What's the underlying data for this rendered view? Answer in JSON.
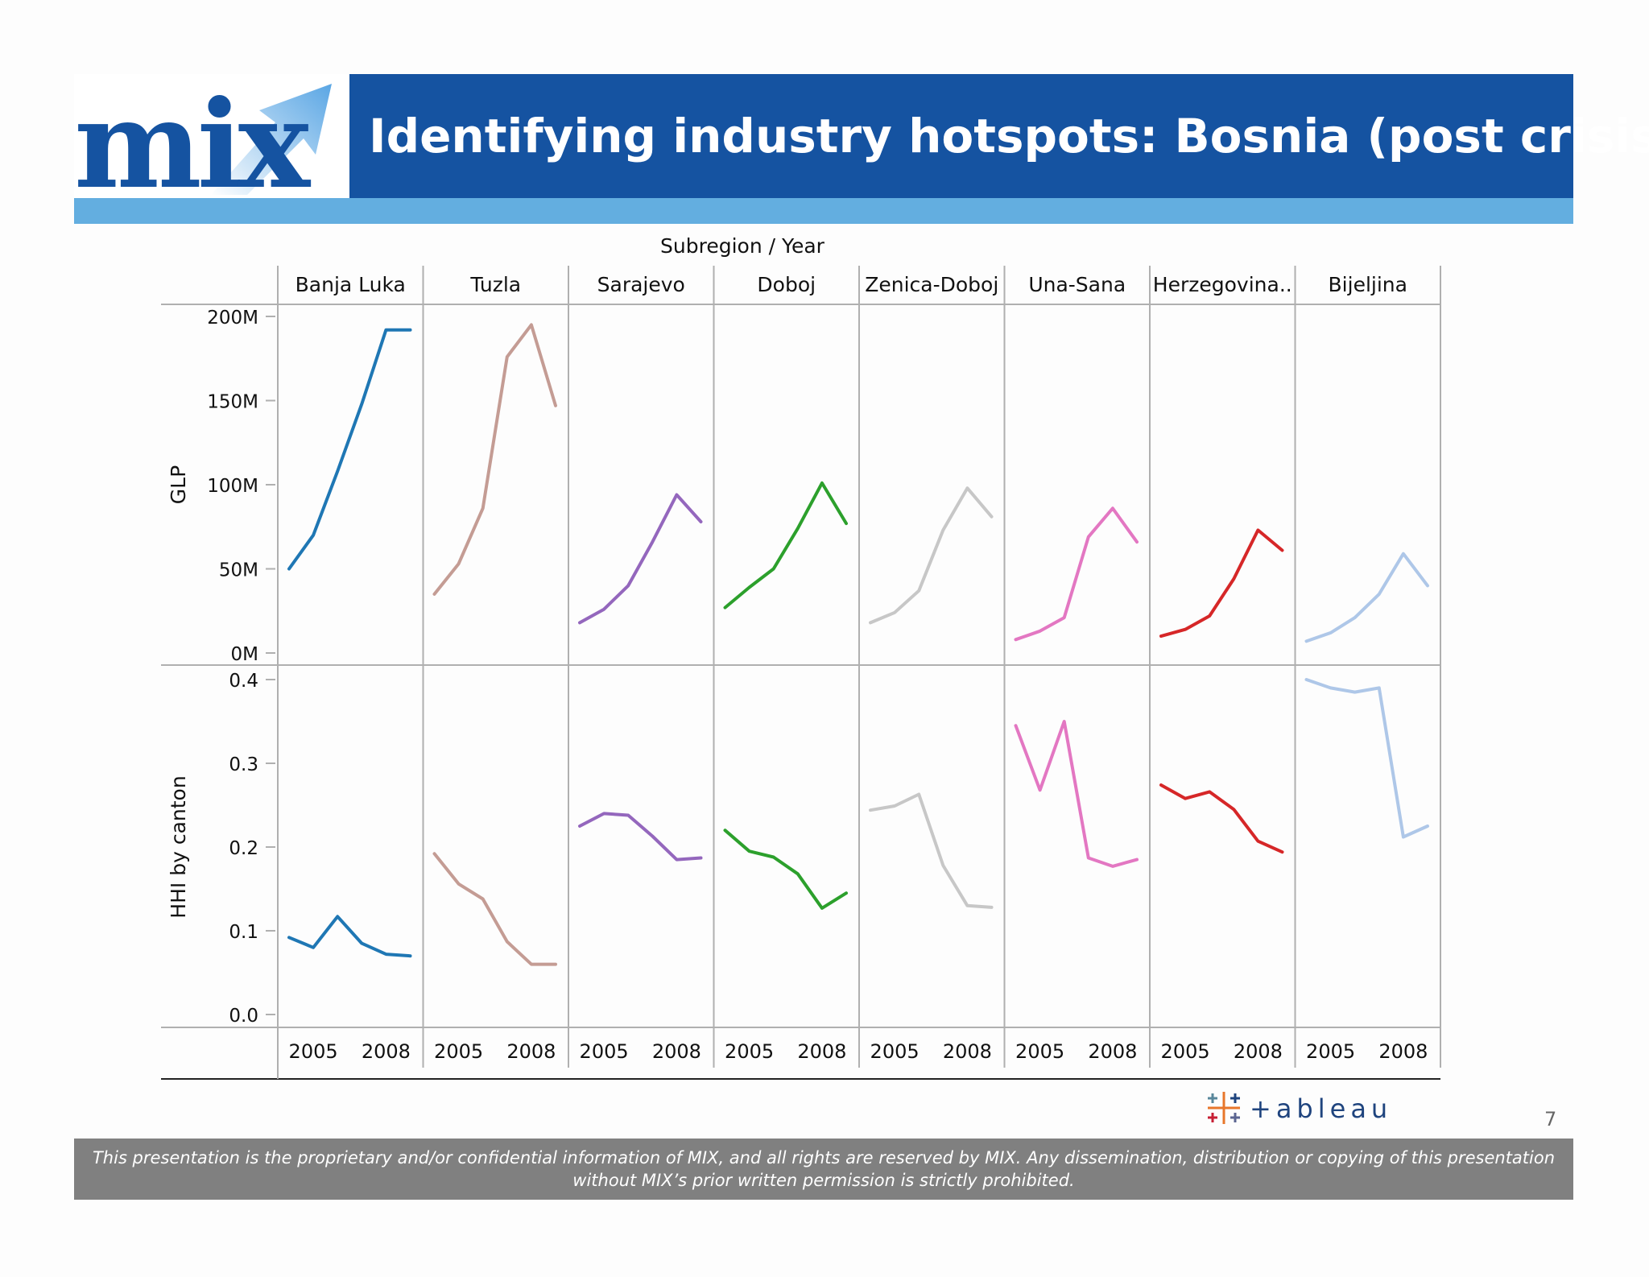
{
  "title": "Identifying industry hotspots: Bosnia (post crisis)",
  "logo_text": "mix",
  "footer_text": "This presentation is the proprietary and/or confidential information of MIX, and all rights are reserved by MIX. Any dissemination, distribution or copying of this presentation without MIX’s prior written permission is strictly prohibited.",
  "page_number": "7",
  "tableau_text": "+ableau",
  "colors": {
    "title_bar": "#1553a1",
    "light_bar": "#63aee0",
    "footer": "#808080"
  },
  "chart_data": {
    "type": "line",
    "header_title": "Subregion  /  Year",
    "rows": [
      {
        "ylabel": "GLP",
        "ylim": [
          0,
          200000000
        ],
        "ticks": [
          "0M",
          "50M",
          "100M",
          "150M",
          "200M"
        ],
        "tick_values": [
          0,
          50000000,
          100000000,
          150000000,
          200000000
        ]
      },
      {
        "ylabel": "HHI by canton",
        "ylim": [
          0,
          0.4
        ],
        "ticks": [
          "0.0",
          "0.1",
          "0.2",
          "0.3",
          "0.4"
        ],
        "tick_values": [
          0,
          0.1,
          0.2,
          0.3,
          0.4
        ]
      }
    ],
    "x_tick_labels": [
      "2005",
      "2008"
    ],
    "x_tick_values": [
      2005,
      2008
    ],
    "x": [
      2004,
      2005,
      2006,
      2007,
      2008,
      2009
    ],
    "panels": [
      {
        "name": "Banja Luka",
        "color": "#1f77b4",
        "glp": [
          50000000,
          70000000,
          108000000,
          148000000,
          192000000,
          192000000
        ],
        "hhi": [
          0.092,
          0.08,
          0.117,
          0.085,
          0.072,
          0.07
        ]
      },
      {
        "name": "Tuzla",
        "color": "#c49c94",
        "glp": [
          35000000,
          53000000,
          86000000,
          176000000,
          195000000,
          147000000
        ],
        "hhi": [
          0.192,
          0.156,
          0.138,
          0.087,
          0.06,
          0.06
        ]
      },
      {
        "name": "Sarajevo",
        "color": "#9467bd",
        "glp": [
          18000000,
          26000000,
          40000000,
          66000000,
          94000000,
          78000000
        ],
        "hhi": [
          0.225,
          0.24,
          0.238,
          0.213,
          0.185,
          0.187
        ]
      },
      {
        "name": "Doboj",
        "color": "#2ca02c",
        "glp": [
          27000000,
          39000000,
          50000000,
          74000000,
          101000000,
          77000000
        ],
        "hhi": [
          0.22,
          0.195,
          0.188,
          0.168,
          0.127,
          0.145
        ]
      },
      {
        "name": "Zenica-Doboj",
        "color": "#c7c7c7",
        "glp": [
          18000000,
          24000000,
          37000000,
          73000000,
          98000000,
          81000000
        ],
        "hhi": [
          0.244,
          0.249,
          0.263,
          0.178,
          0.13,
          0.128
        ]
      },
      {
        "name": "Una-Sana",
        "color": "#e377c2",
        "glp": [
          8000000,
          13000000,
          21000000,
          69000000,
          86000000,
          66000000
        ],
        "hhi": [
          0.345,
          0.268,
          0.35,
          0.187,
          0.177,
          0.185
        ]
      },
      {
        "name": "Herzegovina..",
        "color": "#d62728",
        "glp": [
          10000000,
          14000000,
          22000000,
          44000000,
          73000000,
          61000000
        ],
        "hhi": [
          0.274,
          0.258,
          0.266,
          0.245,
          0.207,
          0.194
        ]
      },
      {
        "name": "Bijeljina",
        "color": "#aec7e8",
        "glp": [
          7000000,
          12000000,
          21000000,
          35000000,
          59000000,
          40000000
        ],
        "hhi": [
          0.4,
          0.39,
          0.385,
          0.39,
          0.212,
          0.225
        ]
      }
    ]
  }
}
